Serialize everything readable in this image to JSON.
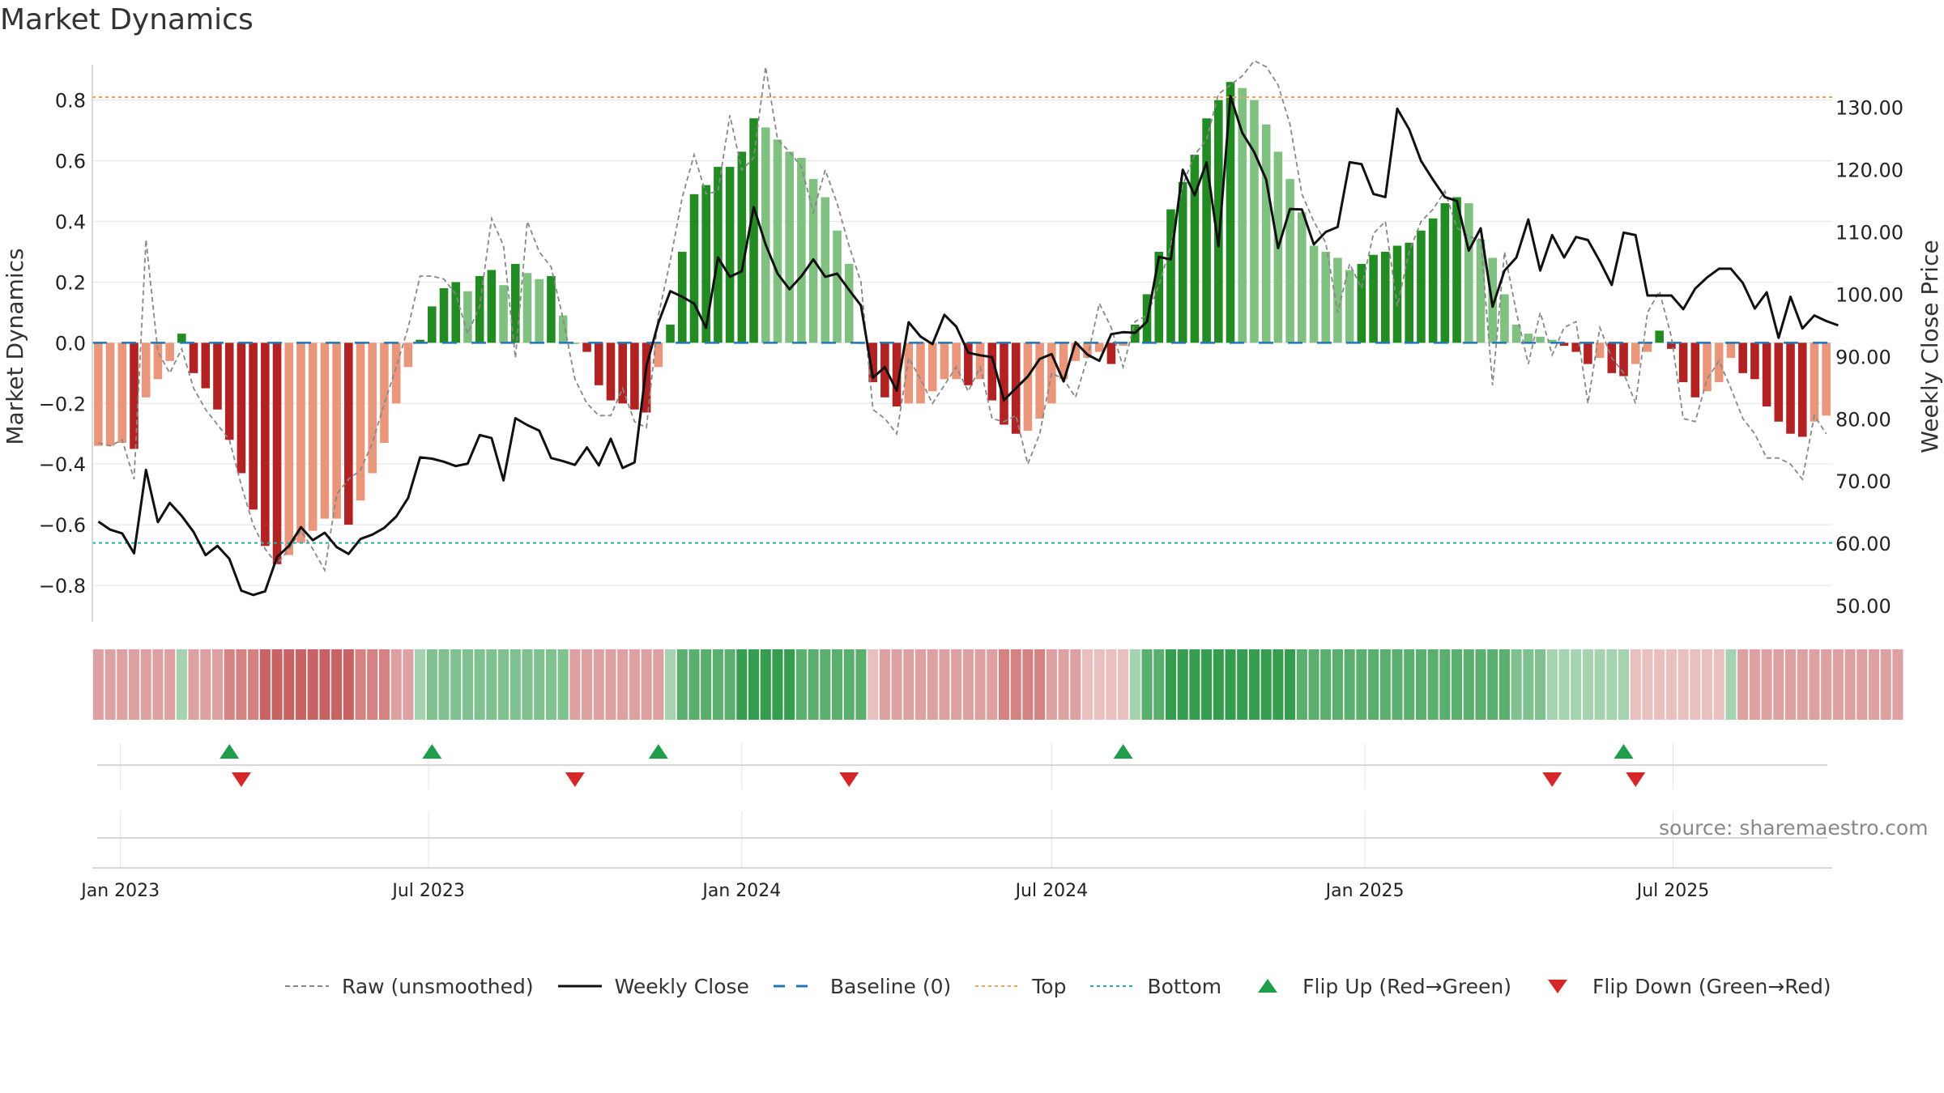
{
  "chart_data": {
    "type": "bar",
    "title": "Market Dynamics",
    "ylabel": "Market Dynamics",
    "y2label": "Weekly Close Price",
    "ylim": [
      -0.92,
      0.93
    ],
    "y2lim": [
      47.4,
      137.5
    ],
    "yticks": [
      -0.8,
      -0.6,
      -0.4,
      -0.2,
      0,
      0.2,
      0.4,
      0.6,
      0.8
    ],
    "y2ticks": [
      "50.00",
      "60.00",
      "70.00",
      "80.00",
      "90.00",
      "100.00",
      "110.00",
      "120.00",
      "130.00"
    ],
    "y2tick_values": [
      50,
      60,
      70,
      80,
      90,
      100,
      110,
      120,
      130
    ],
    "top_level": 0.81,
    "bottom_level": -0.66,
    "x_start": "2022-12-19",
    "xticks": [
      {
        "label": "Jan 2023",
        "date": "2023-01-01"
      },
      {
        "label": "Jul 2023",
        "date": "2023-07-01"
      },
      {
        "label": "Jan 2024",
        "date": "2024-01-01"
      },
      {
        "label": "Jul 2024",
        "date": "2024-07-01"
      },
      {
        "label": "Jan 2025",
        "date": "2025-01-01"
      },
      {
        "label": "Jul 2025",
        "date": "2025-07-01"
      }
    ],
    "bars": [
      -0.34,
      -0.34,
      -0.33,
      -0.35,
      -0.18,
      -0.12,
      -0.06,
      0.03,
      -0.1,
      -0.15,
      -0.22,
      -0.32,
      -0.43,
      -0.55,
      -0.67,
      -0.73,
      -0.7,
      -0.66,
      -0.62,
      -0.58,
      -0.58,
      -0.6,
      -0.52,
      -0.43,
      -0.33,
      -0.2,
      -0.08,
      0.01,
      0.12,
      0.18,
      0.2,
      0.17,
      0.22,
      0.24,
      0.19,
      0.26,
      0.23,
      0.21,
      0.22,
      0.09,
      0.0,
      -0.03,
      -0.14,
      -0.19,
      -0.2,
      -0.22,
      -0.23,
      -0.08,
      0.06,
      0.3,
      0.49,
      0.52,
      0.58,
      0.58,
      0.63,
      0.74,
      0.71,
      0.67,
      0.63,
      0.61,
      0.54,
      0.48,
      0.37,
      0.26,
      0.0,
      -0.13,
      -0.18,
      -0.21,
      -0.2,
      -0.2,
      -0.16,
      -0.12,
      -0.12,
      -0.14,
      -0.12,
      -0.19,
      -0.27,
      -0.3,
      -0.29,
      -0.25,
      -0.2,
      -0.12,
      -0.06,
      -0.05,
      -0.03,
      -0.07,
      -0.01,
      0.06,
      0.16,
      0.3,
      0.44,
      0.53,
      0.62,
      0.74,
      0.8,
      0.86,
      0.84,
      0.8,
      0.72,
      0.63,
      0.54,
      0.43,
      0.32,
      0.3,
      0.28,
      0.24,
      0.26,
      0.29,
      0.3,
      0.32,
      0.33,
      0.37,
      0.41,
      0.46,
      0.48,
      0.46,
      0.34,
      0.28,
      0.16,
      0.06,
      0.03,
      0.02,
      0.01,
      -0.01,
      -0.03,
      -0.07,
      -0.05,
      -0.1,
      -0.11,
      -0.07,
      -0.03,
      0.04,
      -0.02,
      -0.13,
      -0.18,
      -0.16,
      -0.13,
      -0.05,
      -0.1,
      -0.12,
      -0.21,
      -0.26,
      -0.3,
      -0.31,
      -0.26,
      -0.24
    ],
    "raw": [
      -0.33,
      -0.34,
      -0.32,
      -0.45,
      0.34,
      -0.03,
      -0.1,
      -0.02,
      -0.15,
      -0.22,
      -0.27,
      -0.32,
      -0.47,
      -0.6,
      -0.68,
      -0.73,
      -0.68,
      -0.62,
      -0.68,
      -0.75,
      -0.5,
      -0.45,
      -0.42,
      -0.33,
      -0.2,
      -0.08,
      0.05,
      0.22,
      0.22,
      0.21,
      0.16,
      0.03,
      0.12,
      0.41,
      0.32,
      -0.05,
      0.4,
      0.3,
      0.25,
      0.08,
      -0.12,
      -0.2,
      -0.24,
      -0.24,
      -0.15,
      -0.26,
      -0.28,
      0.09,
      0.27,
      0.48,
      0.62,
      0.49,
      0.5,
      0.75,
      0.57,
      0.61,
      0.91,
      0.67,
      0.63,
      0.58,
      0.43,
      0.57,
      0.46,
      0.32,
      0.2,
      -0.22,
      -0.25,
      -0.3,
      -0.05,
      -0.12,
      -0.2,
      -0.14,
      -0.08,
      -0.16,
      -0.08,
      -0.25,
      -0.26,
      -0.24,
      -0.4,
      -0.3,
      -0.1,
      -0.12,
      -0.18,
      -0.05,
      0.13,
      0.05,
      -0.08,
      0.07,
      0.09,
      0.19,
      0.32,
      0.52,
      0.62,
      0.67,
      0.82,
      0.85,
      0.88,
      0.93,
      0.91,
      0.85,
      0.72,
      0.49,
      0.4,
      0.33,
      0.1,
      0.26,
      0.18,
      0.36,
      0.4,
      0.12,
      0.3,
      0.4,
      0.44,
      0.5,
      0.38,
      0.35,
      0.34,
      -0.14,
      0.3,
      0.1,
      -0.07,
      0.1,
      -0.04,
      0.05,
      0.07,
      -0.2,
      0.05,
      -0.05,
      -0.1,
      -0.2,
      0.1,
      0.17,
      0.02,
      -0.25,
      -0.26,
      -0.12,
      -0.06,
      -0.15,
      -0.25,
      -0.3,
      -0.38,
      -0.38,
      -0.4,
      -0.45,
      -0.24,
      -0.3
    ],
    "price": [
      63.5,
      62.2,
      61.6,
      58.4,
      71.8,
      63.4,
      66.5,
      64.4,
      61.8,
      58.1,
      59.6,
      57.5,
      52.4,
      51.7,
      52.3,
      57.8,
      59.6,
      62.6,
      60.5,
      61.7,
      59.4,
      58.3,
      60.7,
      61.4,
      62.5,
      64.3,
      67.3,
      73.8,
      73.6,
      73.1,
      72.4,
      72.8,
      77.4,
      76.9,
      70.1,
      80.1,
      79.0,
      78.1,
      73.7,
      73.2,
      72.6,
      75.4,
      72.5,
      76.8,
      72.1,
      73.0,
      88.5,
      95.4,
      100.5,
      99.6,
      98.5,
      94.6,
      105.9,
      102.8,
      103.7,
      114.0,
      108.0,
      103.3,
      100.8,
      102.9,
      105.6,
      102.8,
      103.3,
      100.7,
      98.2,
      86.6,
      88.3,
      84.5,
      95.5,
      93.2,
      92.0,
      96.7,
      94.8,
      90.6,
      90.2,
      89.9,
      83.0,
      84.9,
      86.8,
      89.6,
      90.4,
      86.0,
      92.3,
      90.3,
      89.3,
      93.6,
      93.9,
      93.8,
      95.6,
      106.0,
      105.6,
      120.0,
      115.9,
      121.2,
      107.7,
      131.8,
      125.9,
      122.8,
      118.4,
      107.4,
      113.7,
      113.6,
      108.0,
      110.0,
      110.8,
      121.2,
      120.9,
      116.1,
      115.6,
      129.8,
      126.5,
      121.4,
      118.4,
      115.6,
      115.0,
      107.0,
      110.6,
      98.0,
      103.8,
      105.9,
      112.0,
      103.8,
      109.5,
      105.9,
      109.2,
      108.7,
      105.3,
      101.5,
      109.9,
      109.5,
      99.8,
      99.8,
      99.8,
      97.6,
      100.9,
      102.7,
      104.1,
      104.1,
      101.8,
      97.7,
      100.3,
      93.0,
      99.6,
      94.5,
      96.6,
      95.7,
      95.0
    ],
    "regime_strip": [
      -2,
      -2,
      -2,
      -2,
      -2,
      -2,
      -2,
      1,
      -2,
      -2,
      -2,
      -3,
      -3,
      -3,
      -4,
      -4,
      -4,
      -4,
      -4,
      -4,
      -4,
      -4,
      -3,
      -3,
      -3,
      -2,
      -2,
      1,
      2,
      2,
      2,
      2,
      2,
      2,
      2,
      2,
      2,
      2,
      2,
      2,
      -2,
      -2,
      -2,
      -2,
      -2,
      -2,
      -2,
      -2,
      1,
      3,
      3,
      3,
      3,
      3,
      4,
      4,
      4,
      4,
      4,
      3,
      3,
      3,
      3,
      3,
      3,
      -1,
      -2,
      -2,
      -2,
      -2,
      -2,
      -2,
      -2,
      -2,
      -2,
      -2,
      -3,
      -3,
      -3,
      -3,
      -2,
      -2,
      -2,
      -1,
      -1,
      -1,
      -1,
      1,
      3,
      3,
      4,
      4,
      4,
      4,
      4,
      4,
      4,
      4,
      4,
      4,
      4,
      3,
      3,
      3,
      3,
      3,
      3,
      3,
      3,
      3,
      3,
      3,
      3,
      3,
      3,
      3,
      3,
      3,
      3,
      2,
      2,
      2,
      1,
      1,
      1,
      1,
      1,
      1,
      1,
      -1,
      -1,
      -1,
      -1,
      -1,
      -1,
      -1,
      -1,
      1,
      -2,
      -2,
      -2,
      -2,
      -2,
      -2,
      -2,
      -2,
      -2,
      -2,
      -2,
      -2,
      -2,
      -2
    ],
    "flips_up": [
      "2023-03-06",
      "2023-07-03",
      "2023-11-13",
      "2024-08-12",
      "2025-06-02"
    ],
    "flips_down": [
      "2023-03-13",
      "2023-09-25",
      "2024-03-04",
      "2025-04-21",
      "2025-06-09"
    ],
    "source": "source: sharemaestro.com",
    "legend": [
      {
        "label": "Raw (unsmoothed)",
        "style": "dashed-gray"
      },
      {
        "label": "Weekly Close",
        "style": "solid-black"
      },
      {
        "label": "Baseline (0)",
        "style": "dashed-blue"
      },
      {
        "label": "Top",
        "style": "dotted-orange"
      },
      {
        "label": "Bottom",
        "style": "dotted-cyan"
      },
      {
        "label": "Flip Up (Red→Green)",
        "style": "triangle-up-green"
      },
      {
        "label": "Flip Down (Green→Red)",
        "style": "triangle-down-red"
      }
    ],
    "grid": true,
    "colors": {
      "pos_strong": "#228b22",
      "pos_weak": "#80c080",
      "neg_strong": "#b22222",
      "neg_weak": "#e9967a",
      "raw": "#888888",
      "price": "#111111",
      "baseline": "#1f77b4",
      "top": "#f4a460",
      "bottom": "#20b2aa",
      "flip_up": "#1e9e4a",
      "flip_down": "#d62728"
    }
  }
}
